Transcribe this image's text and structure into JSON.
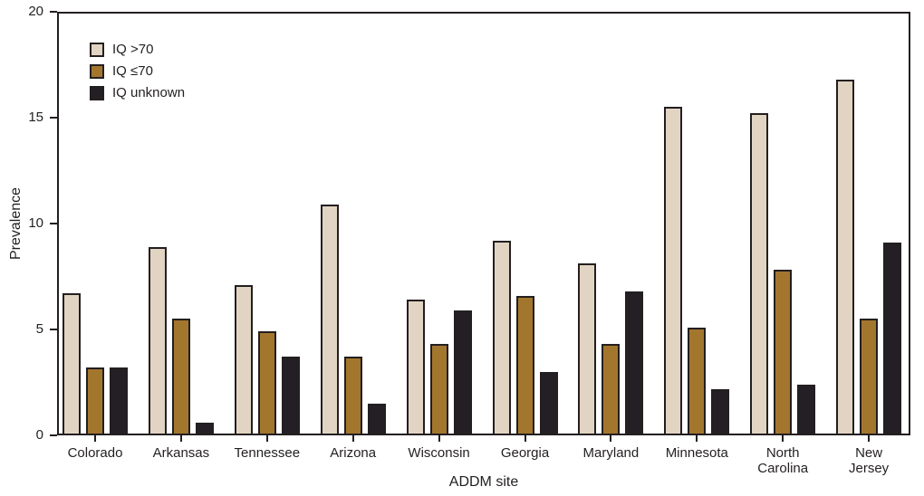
{
  "chart_data": {
    "type": "bar",
    "title": "",
    "xlabel": "ADDM site",
    "ylabel": "Prevalence",
    "ylim": [
      0,
      20
    ],
    "yticks": [
      0,
      5,
      10,
      15,
      20
    ],
    "grid": false,
    "legend_position": "top-left",
    "categories": [
      "Colorado",
      "Arkansas",
      "Tennessee",
      "Arizona",
      "Wisconsin",
      "Georgia",
      "Maryland",
      "Minnesota",
      "North\nCarolina",
      "New\nJersey"
    ],
    "series": [
      {
        "name": "IQ >70",
        "color": "#e2d4c2",
        "values": [
          6.7,
          8.9,
          7.1,
          10.9,
          6.4,
          9.2,
          8.1,
          15.5,
          15.2,
          16.8
        ]
      },
      {
        "name": "IQ ≤70",
        "color": "#a3762e",
        "values": [
          3.2,
          5.5,
          4.9,
          3.7,
          4.3,
          6.6,
          4.3,
          5.1,
          7.8,
          5.5
        ]
      },
      {
        "name": "IQ unknown",
        "color": "#241f24",
        "values": [
          3.2,
          0.6,
          3.7,
          1.5,
          5.9,
          3.0,
          6.8,
          2.2,
          2.4,
          9.1
        ]
      }
    ],
    "colors": {
      "axis": "#231f20",
      "text": "#231f20",
      "background": "#ffffff"
    }
  }
}
